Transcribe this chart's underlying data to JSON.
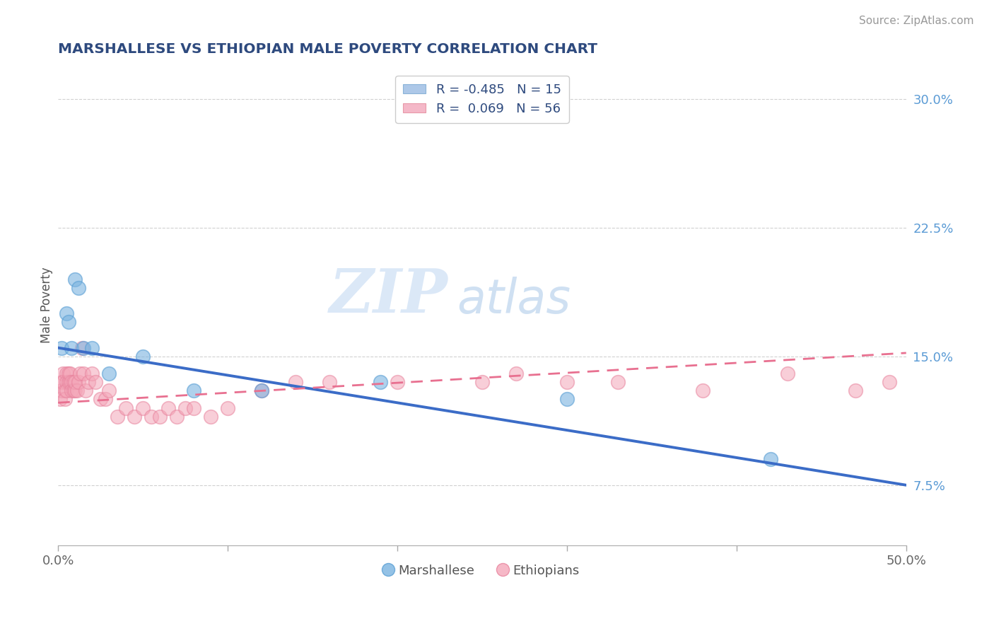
{
  "title": "MARSHALLESE VS ETHIOPIAN MALE POVERTY CORRELATION CHART",
  "source": "Source: ZipAtlas.com",
  "ylabel": "Male Poverty",
  "xlim": [
    0.0,
    0.5
  ],
  "ylim": [
    0.04,
    0.32
  ],
  "ytick_labels_right": [
    "30.0%",
    "22.5%",
    "15.0%",
    "7.5%"
  ],
  "ytick_vals_right": [
    0.3,
    0.225,
    0.15,
    0.075
  ],
  "marshallese_color": "#7ab3e0",
  "marshallese_edge": "#5a9fd4",
  "ethiopian_color": "#f4a7b9",
  "ethiopian_edge": "#e8849e",
  "marshallese_line_color": "#3b6cc7",
  "ethiopian_line_color": "#e87090",
  "legend_r_marshallese": "R = -0.485",
  "legend_n_marshallese": "N = 15",
  "legend_r_ethiopian": "R =  0.069",
  "legend_n_ethiopian": "N = 56",
  "watermark_zip": "ZIP",
  "watermark_atlas": "atlas",
  "marshallese_x": [
    0.002,
    0.005,
    0.006,
    0.008,
    0.01,
    0.012,
    0.015,
    0.02,
    0.03,
    0.05,
    0.08,
    0.12,
    0.19,
    0.3,
    0.42
  ],
  "marshallese_y": [
    0.155,
    0.175,
    0.17,
    0.155,
    0.195,
    0.19,
    0.155,
    0.155,
    0.14,
    0.15,
    0.13,
    0.13,
    0.135,
    0.125,
    0.09
  ],
  "ethiopian_x": [
    0.001,
    0.002,
    0.002,
    0.003,
    0.003,
    0.004,
    0.004,
    0.005,
    0.005,
    0.005,
    0.006,
    0.006,
    0.007,
    0.007,
    0.008,
    0.008,
    0.009,
    0.009,
    0.01,
    0.01,
    0.011,
    0.012,
    0.013,
    0.014,
    0.015,
    0.016,
    0.018,
    0.02,
    0.022,
    0.025,
    0.028,
    0.03,
    0.035,
    0.04,
    0.045,
    0.05,
    0.055,
    0.06,
    0.065,
    0.07,
    0.075,
    0.08,
    0.09,
    0.1,
    0.12,
    0.14,
    0.16,
    0.2,
    0.25,
    0.27,
    0.3,
    0.33,
    0.38,
    0.43,
    0.47,
    0.49
  ],
  "ethiopian_y": [
    0.125,
    0.135,
    0.13,
    0.14,
    0.135,
    0.13,
    0.125,
    0.14,
    0.135,
    0.13,
    0.14,
    0.135,
    0.135,
    0.14,
    0.135,
    0.13,
    0.135,
    0.13,
    0.13,
    0.135,
    0.13,
    0.135,
    0.14,
    0.155,
    0.14,
    0.13,
    0.135,
    0.14,
    0.135,
    0.125,
    0.125,
    0.13,
    0.115,
    0.12,
    0.115,
    0.12,
    0.115,
    0.115,
    0.12,
    0.115,
    0.12,
    0.12,
    0.115,
    0.12,
    0.13,
    0.135,
    0.135,
    0.135,
    0.135,
    0.14,
    0.135,
    0.135,
    0.13,
    0.14,
    0.13,
    0.135
  ],
  "background_color": "#ffffff",
  "grid_color": "#d0d0d0"
}
